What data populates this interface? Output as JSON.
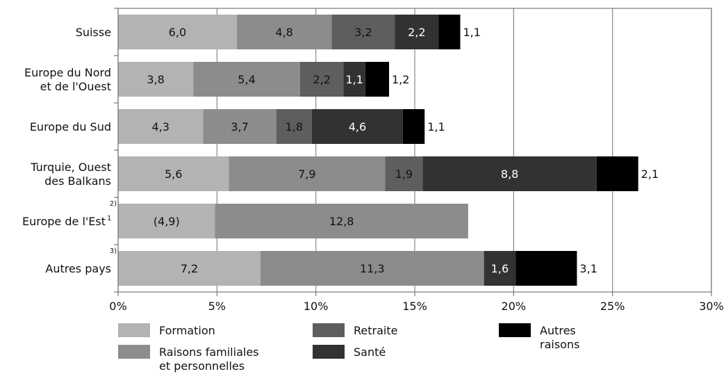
{
  "chart_data": {
    "type": "bar",
    "orientation": "horizontal",
    "stacked": true,
    "categories": [
      [
        "Suisse"
      ],
      [
        "Europe du Nord",
        "et de l'Ouest"
      ],
      [
        "Europe du Sud"
      ],
      [
        "Turquie, Ouest",
        "des Balkans"
      ],
      [
        "Europe de l'Est"
      ],
      [
        "Autres pays"
      ]
    ],
    "category_notes": [
      "",
      "",
      "",
      "",
      "1",
      ""
    ],
    "category_refs": [
      "",
      "",
      "",
      "",
      "2)",
      "3)"
    ],
    "series": [
      {
        "name": "Formation",
        "color": "#b3b3b3",
        "label_color": "#111111",
        "values": [
          6.0,
          3.8,
          4.3,
          5.6,
          4.9,
          7.2
        ],
        "labels": [
          "6,0",
          "3,8",
          "4,3",
          "5,6",
          "(4,9)",
          "7,2"
        ]
      },
      {
        "name": "Raisons familiales et personnelles",
        "color": "#8c8c8c",
        "label_color": "#111111",
        "values": [
          4.8,
          5.4,
          3.7,
          7.9,
          12.8,
          11.3
        ],
        "labels": [
          "4,8",
          "5,4",
          "3,7",
          "7,9",
          "12,8",
          "11,3"
        ]
      },
      {
        "name": "Retraite",
        "color": "#5e5e5e",
        "label_color": "#111111",
        "values": [
          3.2,
          2.2,
          1.8,
          1.9,
          0,
          0
        ],
        "labels": [
          "3,2",
          "2,2",
          "1,8",
          "1,9",
          "",
          ""
        ]
      },
      {
        "name": "Santé",
        "color": "#323232",
        "label_color": "#ffffff",
        "values": [
          2.2,
          1.1,
          4.6,
          8.8,
          0,
          1.6
        ],
        "labels": [
          "2,2",
          "1,1",
          "4,6",
          "8,8",
          "",
          "1,6"
        ]
      },
      {
        "name": "Autres raisons",
        "color": "#000000",
        "label_color": "#111111",
        "values": [
          1.1,
          1.2,
          1.1,
          2.1,
          0,
          3.1
        ],
        "labels": [
          "1,1",
          "1,2",
          "1,1",
          "2,1",
          "",
          "3,1"
        ]
      }
    ],
    "xlim": [
      0,
      30
    ],
    "xticks": [
      "0%",
      "5%",
      "10%",
      "15%",
      "20%",
      "25%",
      "30%"
    ],
    "grid": true,
    "legend": {
      "placement": "bottom",
      "entries": [
        {
          "lines": [
            "Formation"
          ],
          "color": "#b3b3b3"
        },
        {
          "lines": [
            "Raisons familiales",
            "et personnelles"
          ],
          "color": "#8c8c8c"
        },
        {
          "lines": [
            "Retraite"
          ],
          "color": "#5e5e5e"
        },
        {
          "lines": [
            "Santé"
          ],
          "color": "#323232"
        },
        {
          "lines": [
            "Autres",
            "raisons"
          ],
          "color": "#000000"
        }
      ]
    }
  }
}
